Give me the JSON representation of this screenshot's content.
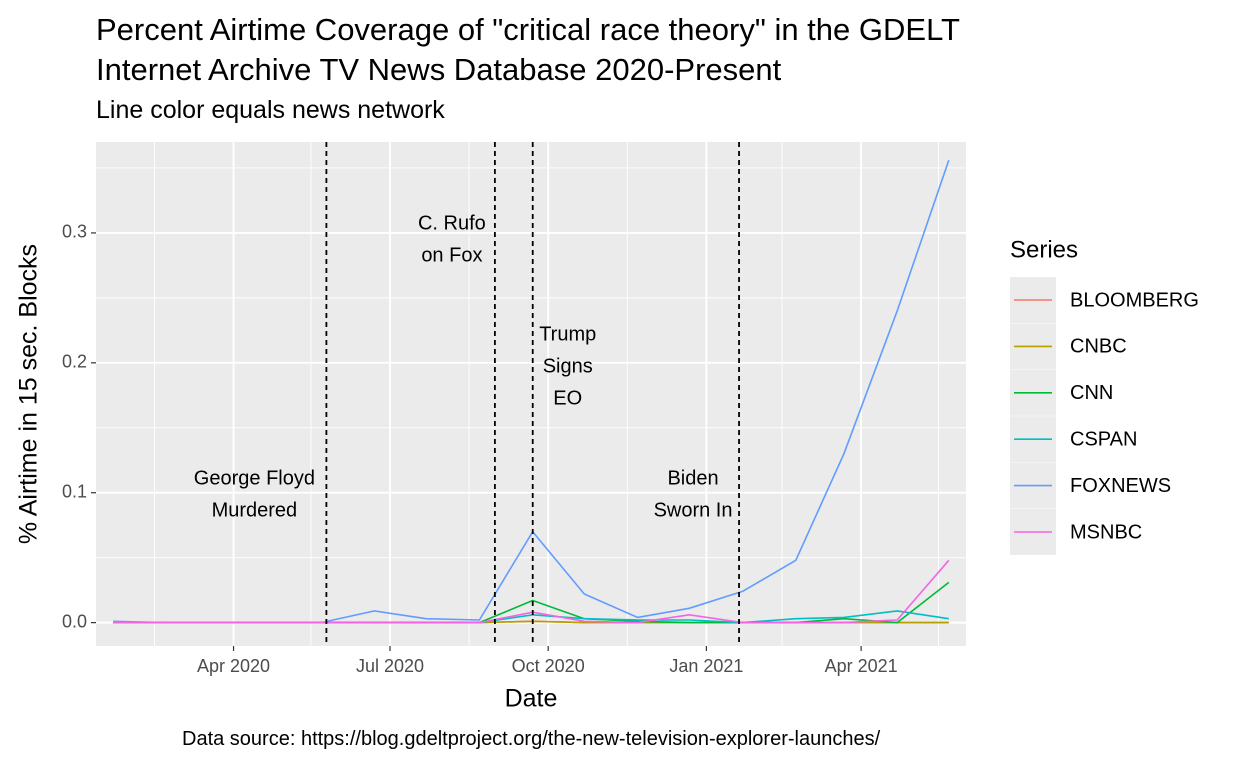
{
  "title_line1": "Percent Airtime Coverage of \"critical race theory\" in the GDELT",
  "title_line2": "Internet Archive TV News Database 2020-Present",
  "subtitle": "Line color equals news network",
  "caption": "Data source: https://blog.gdeltproject.org/the-new-television-explorer-launches/",
  "chart_data": {
    "type": "line",
    "xlabel": "Date",
    "ylabel": "% Airtime in 15 sec. Blocks",
    "x_ticks": [
      "Apr 2020",
      "Jul 2020",
      "Oct 2020",
      "Jan 2021",
      "Apr 2021"
    ],
    "y_ticks": [
      "0.0",
      "0.1",
      "0.2",
      "0.3"
    ],
    "ylim": [
      -0.018,
      0.37
    ],
    "xlim": [
      "2020-01-12",
      "2021-06-01"
    ],
    "grid": true,
    "legend_title": "Series",
    "legend_position": "right",
    "x": [
      "2020-01-22",
      "2020-02-20",
      "2020-03-22",
      "2020-04-22",
      "2020-05-22",
      "2020-06-22",
      "2020-07-22",
      "2020-08-22",
      "2020-09-22",
      "2020-10-22",
      "2020-11-22",
      "2020-12-22",
      "2021-01-22",
      "2021-02-22",
      "2021-03-22",
      "2021-04-22",
      "2021-05-22"
    ],
    "series": [
      {
        "name": "BLOOMBERG",
        "color": "#F8766D",
        "values": [
          0,
          0,
          0,
          0,
          0,
          0,
          0,
          0,
          0.001,
          0,
          0,
          0,
          0,
          0,
          0,
          0,
          0
        ]
      },
      {
        "name": "CNBC",
        "color": "#B79F00",
        "values": [
          0,
          0,
          0,
          0,
          0,
          0,
          0,
          0,
          0.001,
          0,
          0,
          0,
          0,
          0,
          0,
          0,
          0
        ]
      },
      {
        "name": "CNN",
        "color": "#00BA38",
        "values": [
          0,
          0,
          0,
          0,
          0,
          0,
          0,
          0,
          0.017,
          0.003,
          0.001,
          0,
          0,
          0,
          0.003,
          0,
          0.031
        ]
      },
      {
        "name": "CSPAN",
        "color": "#00BFC4",
        "values": [
          0,
          0,
          0,
          0,
          0,
          0,
          0,
          0,
          0.006,
          0.003,
          0.002,
          0.002,
          0,
          0.003,
          0.004,
          0.009,
          0.003
        ]
      },
      {
        "name": "FOXNEWS",
        "color": "#619CFF",
        "values": [
          0.001,
          0,
          0,
          0,
          0,
          0.009,
          0.003,
          0.002,
          0.07,
          0.022,
          0.004,
          0.011,
          0.024,
          0.048,
          0.13,
          0.24,
          0.356
        ]
      },
      {
        "name": "MSNBC",
        "color": "#F564E3",
        "values": [
          0,
          0,
          0,
          0,
          0,
          0,
          0,
          0,
          0.008,
          0.001,
          0,
          0.006,
          0,
          0,
          0,
          0.002,
          0.048
        ]
      }
    ],
    "events": [
      {
        "date": "2020-05-25",
        "label_lines": [
          "George Floyd",
          "Murdered"
        ]
      },
      {
        "date": "2020-08-31",
        "label_lines": [
          "C. Rufo",
          "on Fox"
        ]
      },
      {
        "date": "2020-09-22",
        "label_lines": [
          "Trump",
          "Signs",
          "EO"
        ]
      },
      {
        "date": "2021-01-20",
        "label_lines": [
          "Biden",
          "Sworn In"
        ]
      }
    ]
  }
}
